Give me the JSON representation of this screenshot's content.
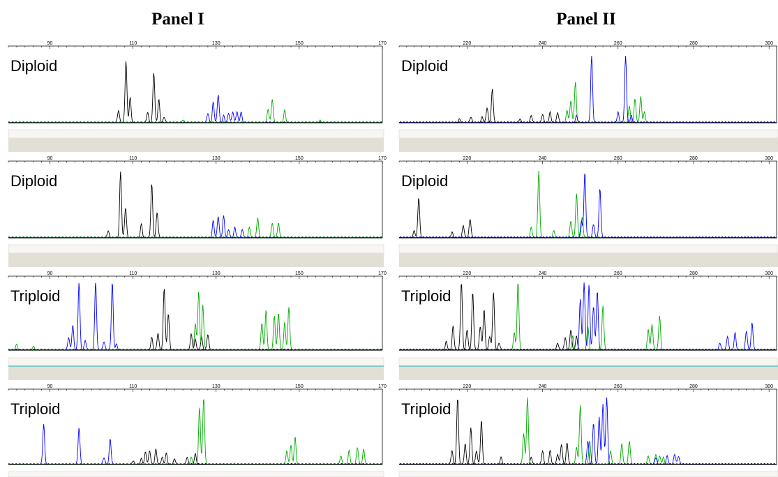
{
  "panels": [
    {
      "title": "Panel I",
      "ticks": [
        90,
        110,
        130,
        150,
        170
      ],
      "xlim": [
        80,
        170
      ]
    },
    {
      "title": "Panel II",
      "ticks": [
        220,
        240,
        260,
        280,
        300
      ],
      "xlim": [
        202,
        302
      ]
    }
  ],
  "chart_data": [
    {
      "type": "line",
      "panel": "Panel I",
      "label": "Diploid",
      "xlim": [
        80,
        170
      ],
      "series": [
        {
          "color": "#000000",
          "peaks": [
            [
              106.5,
              0.18
            ],
            [
              108.3,
              0.92
            ],
            [
              109.3,
              0.37
            ],
            [
              113.5,
              0.15
            ],
            [
              115,
              0.75
            ],
            [
              116.2,
              0.34
            ],
            [
              117.5,
              0.08
            ]
          ]
        },
        {
          "color": "#0000ff",
          "peaks": [
            [
              128,
              0.14
            ],
            [
              129.3,
              0.3
            ],
            [
              130.5,
              0.42
            ],
            [
              131.8,
              0.1
            ],
            [
              133,
              0.14
            ],
            [
              134,
              0.16
            ],
            [
              135,
              0.16
            ],
            [
              136,
              0.15
            ]
          ]
        },
        {
          "color": "#00aa00",
          "peaks": [
            [
              122,
              0.04
            ],
            [
              142.5,
              0.2
            ],
            [
              143.5,
              0.35
            ],
            [
              146.5,
              0.18
            ],
            [
              155,
              0.03
            ]
          ]
        }
      ]
    },
    {
      "type": "line",
      "panel": "Panel I",
      "label": "Diploid",
      "xlim": [
        80,
        170
      ],
      "series": [
        {
          "color": "#000000",
          "peaks": [
            [
              104,
              0.1
            ],
            [
              107,
              0.98
            ],
            [
              108.2,
              0.45
            ],
            [
              112,
              0.2
            ],
            [
              114.5,
              0.8
            ],
            [
              115.8,
              0.38
            ]
          ]
        },
        {
          "color": "#0000ff",
          "peaks": [
            [
              129.3,
              0.25
            ],
            [
              130.5,
              0.32
            ],
            [
              131.8,
              0.32
            ],
            [
              133,
              0.12
            ],
            [
              134.5,
              0.15
            ],
            [
              136.3,
              0.12
            ]
          ]
        },
        {
          "color": "#00aa00",
          "peaks": [
            [
              138,
              0.15
            ],
            [
              140,
              0.3
            ],
            [
              143.5,
              0.22
            ],
            [
              145,
              0.22
            ]
          ]
        }
      ]
    },
    {
      "type": "line",
      "panel": "Panel I",
      "label": "Triploid",
      "xlim": [
        80,
        170
      ],
      "series": [
        {
          "color": "#0000ff",
          "peaks": [
            [
              94.5,
              0.18
            ],
            [
              95.5,
              0.36
            ],
            [
              97,
              1.0
            ],
            [
              98.5,
              0.14
            ],
            [
              101,
              1.0
            ],
            [
              103,
              0.12
            ],
            [
              105,
              1.0
            ],
            [
              106,
              0.08
            ]
          ]
        },
        {
          "color": "#000000",
          "peaks": [
            [
              114.5,
              0.18
            ],
            [
              116,
              0.25
            ],
            [
              117.5,
              0.92
            ],
            [
              118.5,
              0.54
            ],
            [
              124,
              0.23
            ],
            [
              125,
              0.15
            ],
            [
              126.5,
              0.18
            ],
            [
              128,
              0.23
            ]
          ]
        },
        {
          "color": "#00aa00",
          "peaks": [
            [
              82,
              0.08
            ],
            [
              86,
              0.05
            ],
            [
              125,
              0.38
            ],
            [
              125.8,
              0.85
            ],
            [
              126.8,
              0.66
            ],
            [
              141,
              0.4
            ],
            [
              142,
              0.58
            ],
            [
              144,
              0.5
            ],
            [
              145,
              0.55
            ],
            [
              146.5,
              0.4
            ],
            [
              147.5,
              0.63
            ]
          ]
        }
      ]
    },
    {
      "type": "line",
      "panel": "Panel I",
      "label": "Triploid",
      "xlim": [
        80,
        170
      ],
      "series": [
        {
          "color": "#0000ff",
          "peaks": [
            [
              88.5,
              0.6
            ],
            [
              97,
              0.55
            ],
            [
              104.5,
              0.38
            ],
            [
              103,
              0.1
            ]
          ]
        },
        {
          "color": "#000000",
          "peaks": [
            [
              110,
              0.05
            ],
            [
              112,
              0.08
            ],
            [
              113,
              0.18
            ],
            [
              114,
              0.2
            ],
            [
              115.5,
              0.22
            ],
            [
              117,
              0.1
            ],
            [
              118,
              0.16
            ],
            [
              120,
              0.08
            ],
            [
              123,
              0.1
            ],
            [
              125,
              0.15
            ]
          ]
        },
        {
          "color": "#00aa00",
          "peaks": [
            [
              124,
              0.1
            ],
            [
              126,
              0.85
            ],
            [
              127,
              1.0
            ],
            [
              147,
              0.2
            ],
            [
              148,
              0.28
            ],
            [
              149,
              0.4
            ],
            [
              160,
              0.12
            ],
            [
              162,
              0.2
            ],
            [
              164,
              0.25
            ],
            [
              165.5,
              0.22
            ]
          ]
        }
      ]
    },
    {
      "type": "line",
      "panel": "Panel II",
      "label": "Diploid",
      "xlim": [
        202,
        302
      ],
      "series": [
        {
          "color": "#000000",
          "peaks": [
            [
              218,
              0.05
            ],
            [
              221,
              0.08
            ],
            [
              224,
              0.08
            ],
            [
              225.3,
              0.22
            ],
            [
              226.7,
              0.5
            ],
            [
              234,
              0.05
            ],
            [
              237,
              0.1
            ],
            [
              240,
              0.12
            ],
            [
              242,
              0.15
            ],
            [
              244,
              0.15
            ]
          ]
        },
        {
          "color": "#00aa00",
          "peaks": [
            [
              246.5,
              0.18
            ],
            [
              247.5,
              0.33
            ],
            [
              248.7,
              0.6
            ],
            [
              263,
              0.25
            ],
            [
              264.5,
              0.35
            ],
            [
              266,
              0.38
            ],
            [
              267,
              0.15
            ]
          ]
        },
        {
          "color": "#0000ff",
          "peaks": [
            [
              249,
              0.1
            ],
            [
              253,
              1.0
            ],
            [
              260,
              0.15
            ],
            [
              262,
              1.0
            ],
            [
              263.5,
              0.1
            ]
          ]
        }
      ]
    },
    {
      "type": "line",
      "panel": "Panel II",
      "label": "Diploid",
      "xlim": [
        202,
        302
      ],
      "series": [
        {
          "color": "#000000",
          "peaks": [
            [
              206,
              0.1
            ],
            [
              207.2,
              0.6
            ],
            [
              216,
              0.08
            ],
            [
              219,
              0.18
            ],
            [
              220.8,
              0.28
            ]
          ]
        },
        {
          "color": "#00aa00",
          "peaks": [
            [
              237,
              0.15
            ],
            [
              239,
              1.0
            ],
            [
              243,
              0.1
            ],
            [
              247.5,
              0.25
            ],
            [
              249,
              0.65
            ],
            [
              250.5,
              0.3
            ]
          ]
        },
        {
          "color": "#0000ff",
          "peaks": [
            [
              250.3,
              0.25
            ],
            [
              251.2,
              0.98
            ],
            [
              253.5,
              0.2
            ],
            [
              255.2,
              0.74
            ]
          ]
        }
      ]
    },
    {
      "type": "line",
      "panel": "Panel II",
      "label": "Triploid",
      "xlim": [
        202,
        302
      ],
      "series": [
        {
          "color": "#000000",
          "peaks": [
            [
              214.5,
              0.12
            ],
            [
              216.3,
              0.35
            ],
            [
              218.5,
              1.0
            ],
            [
              220,
              0.3
            ],
            [
              221.5,
              0.85
            ],
            [
              223.5,
              0.35
            ],
            [
              224.5,
              0.6
            ],
            [
              226,
              0.2
            ],
            [
              227,
              0.85
            ],
            [
              228.5,
              0.1
            ],
            [
              244,
              0.1
            ],
            [
              246,
              0.18
            ],
            [
              247.5,
              0.3
            ],
            [
              249,
              0.2
            ]
          ]
        },
        {
          "color": "#00aa00",
          "peaks": [
            [
              232.5,
              0.25
            ],
            [
              233.5,
              1.0
            ],
            [
              248,
              0.2
            ],
            [
              252,
              0.35
            ],
            [
              256,
              0.65
            ],
            [
              268,
              0.3
            ],
            [
              269,
              0.38
            ],
            [
              271,
              0.5
            ]
          ]
        },
        {
          "color": "#0000ff",
          "peaks": [
            [
              250,
              0.75
            ],
            [
              251,
              1.0
            ],
            [
              252.3,
              0.95
            ],
            [
              253.5,
              0.65
            ],
            [
              254.5,
              0.88
            ],
            [
              287,
              0.1
            ],
            [
              289,
              0.2
            ],
            [
              291,
              0.25
            ],
            [
              294,
              0.28
            ],
            [
              295.5,
              0.4
            ]
          ]
        }
      ]
    },
    {
      "type": "line",
      "panel": "Panel II",
      "label": "Triploid",
      "xlim": [
        202,
        302
      ],
      "series": [
        {
          "color": "#000000",
          "peaks": [
            [
              216,
              0.2
            ],
            [
              217.5,
              1.0
            ],
            [
              219.5,
              0.3
            ],
            [
              221,
              0.55
            ],
            [
              222.5,
              0.2
            ],
            [
              223.8,
              0.65
            ],
            [
              229,
              0.1
            ],
            [
              237,
              0.1
            ],
            [
              240,
              0.2
            ],
            [
              242,
              0.2
            ],
            [
              244,
              0.15
            ],
            [
              245,
              0.3
            ],
            [
              246.5,
              0.32
            ]
          ]
        },
        {
          "color": "#00aa00",
          "peaks": [
            [
              235,
              0.45
            ],
            [
              236,
              1.0
            ],
            [
              249,
              0.25
            ],
            [
              250,
              0.88
            ],
            [
              252.5,
              0.35
            ],
            [
              258,
              0.2
            ],
            [
              261,
              0.3
            ],
            [
              263,
              0.35
            ],
            [
              268,
              0.12
            ],
            [
              270,
              0.15
            ],
            [
              271,
              0.12
            ],
            [
              272,
              0.1
            ]
          ]
        },
        {
          "color": "#0000ff",
          "peaks": [
            [
              252,
              0.35
            ],
            [
              253.5,
              0.62
            ],
            [
              255,
              0.7
            ],
            [
              256,
              0.9
            ],
            [
              257,
              1.0
            ],
            [
              270,
              0.1
            ],
            [
              273,
              0.12
            ],
            [
              275,
              0.15
            ],
            [
              276,
              0.12
            ]
          ]
        }
      ]
    }
  ]
}
